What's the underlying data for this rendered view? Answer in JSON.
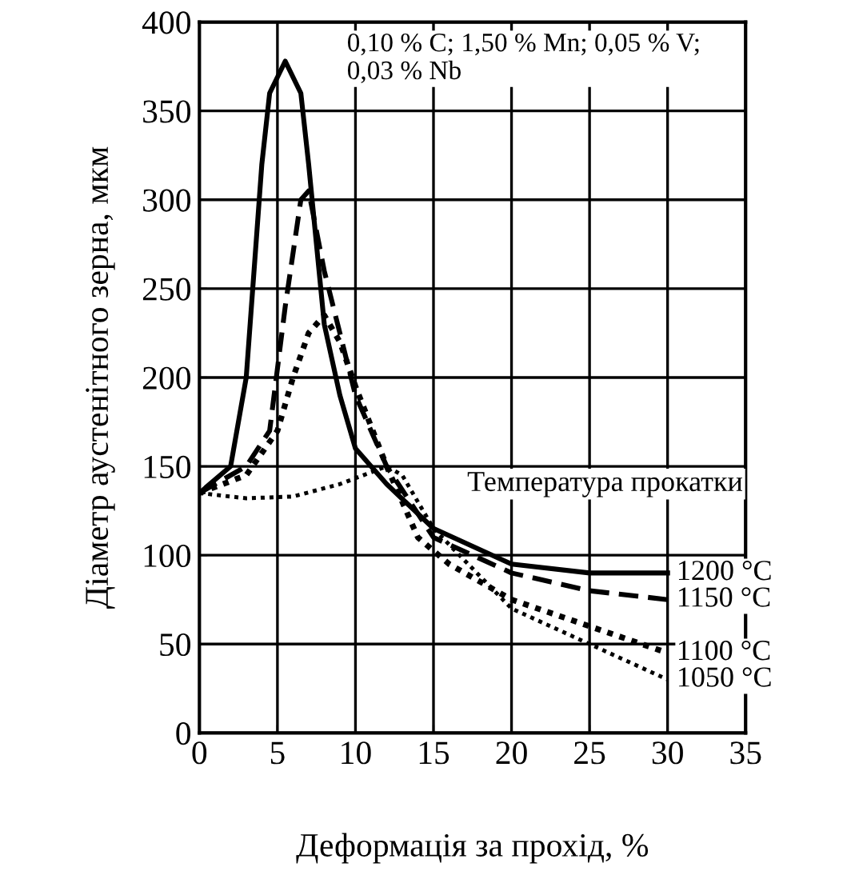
{
  "chart_data": {
    "type": "line",
    "xlabel": "Деформація за прохід, %",
    "ylabel": "Діаметр аустенітного зерна, мкм",
    "legend_title": "Температура прокатки",
    "annotations": [
      "0,10 % C; 1,50 % Mn; 0,05 % V;\n0,03 % Nb"
    ],
    "xlim": [
      0,
      35
    ],
    "xticks": [
      0,
      5,
      10,
      15,
      20,
      25,
      30,
      35
    ],
    "ylim": [
      0,
      400
    ],
    "yticks": [
      0,
      50,
      100,
      150,
      200,
      250,
      300,
      350,
      400
    ],
    "grid": true,
    "legend": false,
    "marker": "none",
    "series": [
      {
        "name": "1200 °C",
        "color": "#000000",
        "line_style": "solid",
        "x": [
          0,
          2,
          3,
          4,
          4.5,
          5.5,
          6.5,
          7,
          8,
          9,
          10,
          12,
          15,
          20,
          25,
          30
        ],
        "values": [
          135,
          150,
          200,
          320,
          360,
          378,
          360,
          320,
          230,
          190,
          160,
          140,
          115,
          95,
          90,
          90
        ]
      },
      {
        "name": "1150 °C",
        "color": "#000000",
        "line_style": "dashed",
        "x": [
          0,
          3,
          4.5,
          5.5,
          6.5,
          7,
          8,
          10,
          12,
          15,
          20,
          25,
          30
        ],
        "values": [
          135,
          150,
          170,
          240,
          300,
          305,
          260,
          190,
          150,
          110,
          90,
          80,
          75
        ]
      },
      {
        "name": "1100 °C",
        "color": "#000000",
        "line_style": "dotted",
        "x": [
          0,
          3,
          5,
          6,
          7,
          8,
          9,
          10,
          12,
          14,
          16,
          20,
          25,
          30
        ],
        "values": [
          135,
          145,
          170,
          200,
          225,
          235,
          220,
          195,
          150,
          110,
          95,
          75,
          60,
          45
        ]
      },
      {
        "name": "1050 °C",
        "color": "#000000",
        "line_style": "dotted",
        "x": [
          0,
          3,
          6,
          9,
          12,
          13,
          15,
          20,
          25,
          30
        ],
        "values": [
          135,
          132,
          133,
          140,
          150,
          145,
          115,
          70,
          50,
          30
        ]
      }
    ]
  }
}
